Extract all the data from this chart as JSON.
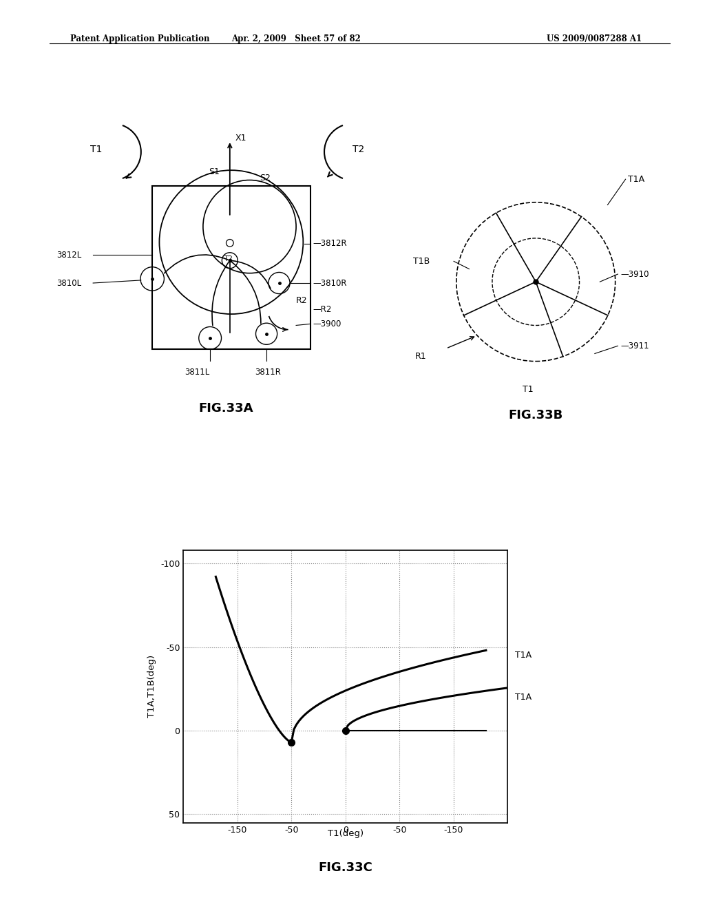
{
  "header_left": "Patent Application Publication",
  "header_center": "Apr. 2, 2009   Sheet 57 of 82",
  "header_right": "US 2009/0087288 A1",
  "background_color": "#ffffff",
  "fig33c": {
    "ylabel": "T1A,T1B(deg)",
    "xlabel": "T1(deg)"
  }
}
